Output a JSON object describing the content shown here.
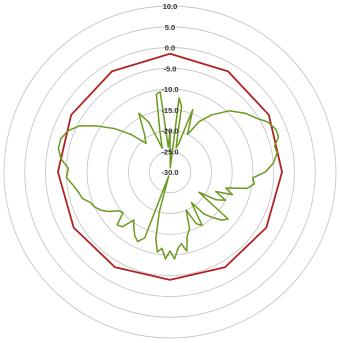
{
  "chart_data": {
    "type": "polar-line",
    "title": "",
    "r_ticks": [
      "10.0",
      "5.0",
      "0.0",
      "-5.0",
      "-10.0",
      "-15.0",
      "-20.0",
      "-25.0",
      "-30.0"
    ],
    "r_tick_values": [
      10,
      5,
      0,
      -5,
      -10,
      -15,
      -20,
      -25,
      -30
    ],
    "r_range": [
      -30,
      10
    ],
    "angle_unit": "degrees, 0 = top, clockwise",
    "grid": true,
    "legend": "none",
    "series": [
      {
        "color": "#b22222",
        "width": 1.8,
        "points": [
          [
            0,
            -1.5
          ],
          [
            30,
            -2.0
          ],
          [
            60,
            -2.5
          ],
          [
            90,
            -3.0
          ],
          [
            120,
            -3.2
          ],
          [
            150,
            -3.5
          ],
          [
            180,
            -4.0
          ],
          [
            210,
            -3.5
          ],
          [
            240,
            -3.2
          ],
          [
            270,
            -3.0
          ],
          [
            300,
            -2.5
          ],
          [
            330,
            -2.0
          ],
          [
            360,
            -1.5
          ]
        ]
      },
      {
        "color": "#6a9a1f",
        "width": 1.5,
        "points": [
          [
            0,
            -20.0
          ],
          [
            4,
            -29.0
          ],
          [
            7,
            -12.0
          ],
          [
            10,
            -14.0
          ],
          [
            14,
            -24.0
          ],
          [
            17,
            -23.0
          ],
          [
            20,
            -14.0
          ],
          [
            25,
            -20.0
          ],
          [
            30,
            -16.0
          ],
          [
            36,
            -13.0
          ],
          [
            44,
            -9.5
          ],
          [
            52,
            -7.0
          ],
          [
            58,
            -5.5
          ],
          [
            63,
            -3.5
          ],
          [
            68,
            -2.5
          ],
          [
            72,
            -2.5
          ],
          [
            76,
            -4.0
          ],
          [
            80,
            -3.8
          ],
          [
            85,
            -5.0
          ],
          [
            90,
            -7.0
          ],
          [
            94,
            -10.0
          ],
          [
            98,
            -9.5
          ],
          [
            102,
            -11.0
          ],
          [
            106,
            -16.0
          ],
          [
            110,
            -14.0
          ],
          [
            113,
            -18.0
          ],
          [
            117,
            -15.0
          ],
          [
            121,
            -17.0
          ],
          [
            125,
            -21.5
          ],
          [
            129,
            -12.0
          ],
          [
            133,
            -13.0
          ],
          [
            137,
            -15.0
          ],
          [
            141,
            -17.0
          ],
          [
            145,
            -21.0
          ],
          [
            149,
            -15.0
          ],
          [
            153,
            -16.0
          ],
          [
            157,
            -20.0
          ],
          [
            161,
            -15.5
          ],
          [
            165,
            -14.0
          ],
          [
            168,
            -10.5
          ],
          [
            171,
            -12.5
          ],
          [
            174,
            -11.5
          ],
          [
            177,
            -9.0
          ],
          [
            180,
            -11.0
          ],
          [
            183,
            -9.0
          ],
          [
            186,
            -11.5
          ],
          [
            189,
            -10.5
          ],
          [
            192,
            -13.5
          ],
          [
            195,
            -20.0
          ],
          [
            198,
            -29.0
          ],
          [
            201,
            -13.0
          ],
          [
            205,
            -11.5
          ],
          [
            209,
            -12.5
          ],
          [
            213,
            -14.0
          ],
          [
            217,
            -15.5
          ],
          [
            221,
            -12.5
          ],
          [
            225,
            -12.0
          ],
          [
            229,
            -15.0
          ],
          [
            233,
            -14.5
          ],
          [
            237,
            -12.5
          ],
          [
            241,
            -11.0
          ],
          [
            245,
            -10.0
          ],
          [
            249,
            -9.5
          ],
          [
            253,
            -8.0
          ],
          [
            257,
            -7.5
          ],
          [
            262,
            -6.5
          ],
          [
            267,
            -5.0
          ],
          [
            272,
            -5.5
          ],
          [
            277,
            -3.5
          ],
          [
            282,
            -2.5
          ],
          [
            287,
            -2.5
          ],
          [
            292,
            -3.5
          ],
          [
            297,
            -5.5
          ],
          [
            302,
            -9.0
          ],
          [
            308,
            -13.0
          ],
          [
            314,
            -17.0
          ],
          [
            320,
            -21.0
          ],
          [
            326,
            -19.0
          ],
          [
            332,
            -14.0
          ],
          [
            337,
            -17.0
          ],
          [
            342,
            -24.0
          ],
          [
            346,
            -20.0
          ],
          [
            350,
            -11.0
          ],
          [
            353,
            -10.5
          ],
          [
            356,
            -24.0
          ],
          [
            360,
            -20.0
          ]
        ]
      }
    ]
  }
}
